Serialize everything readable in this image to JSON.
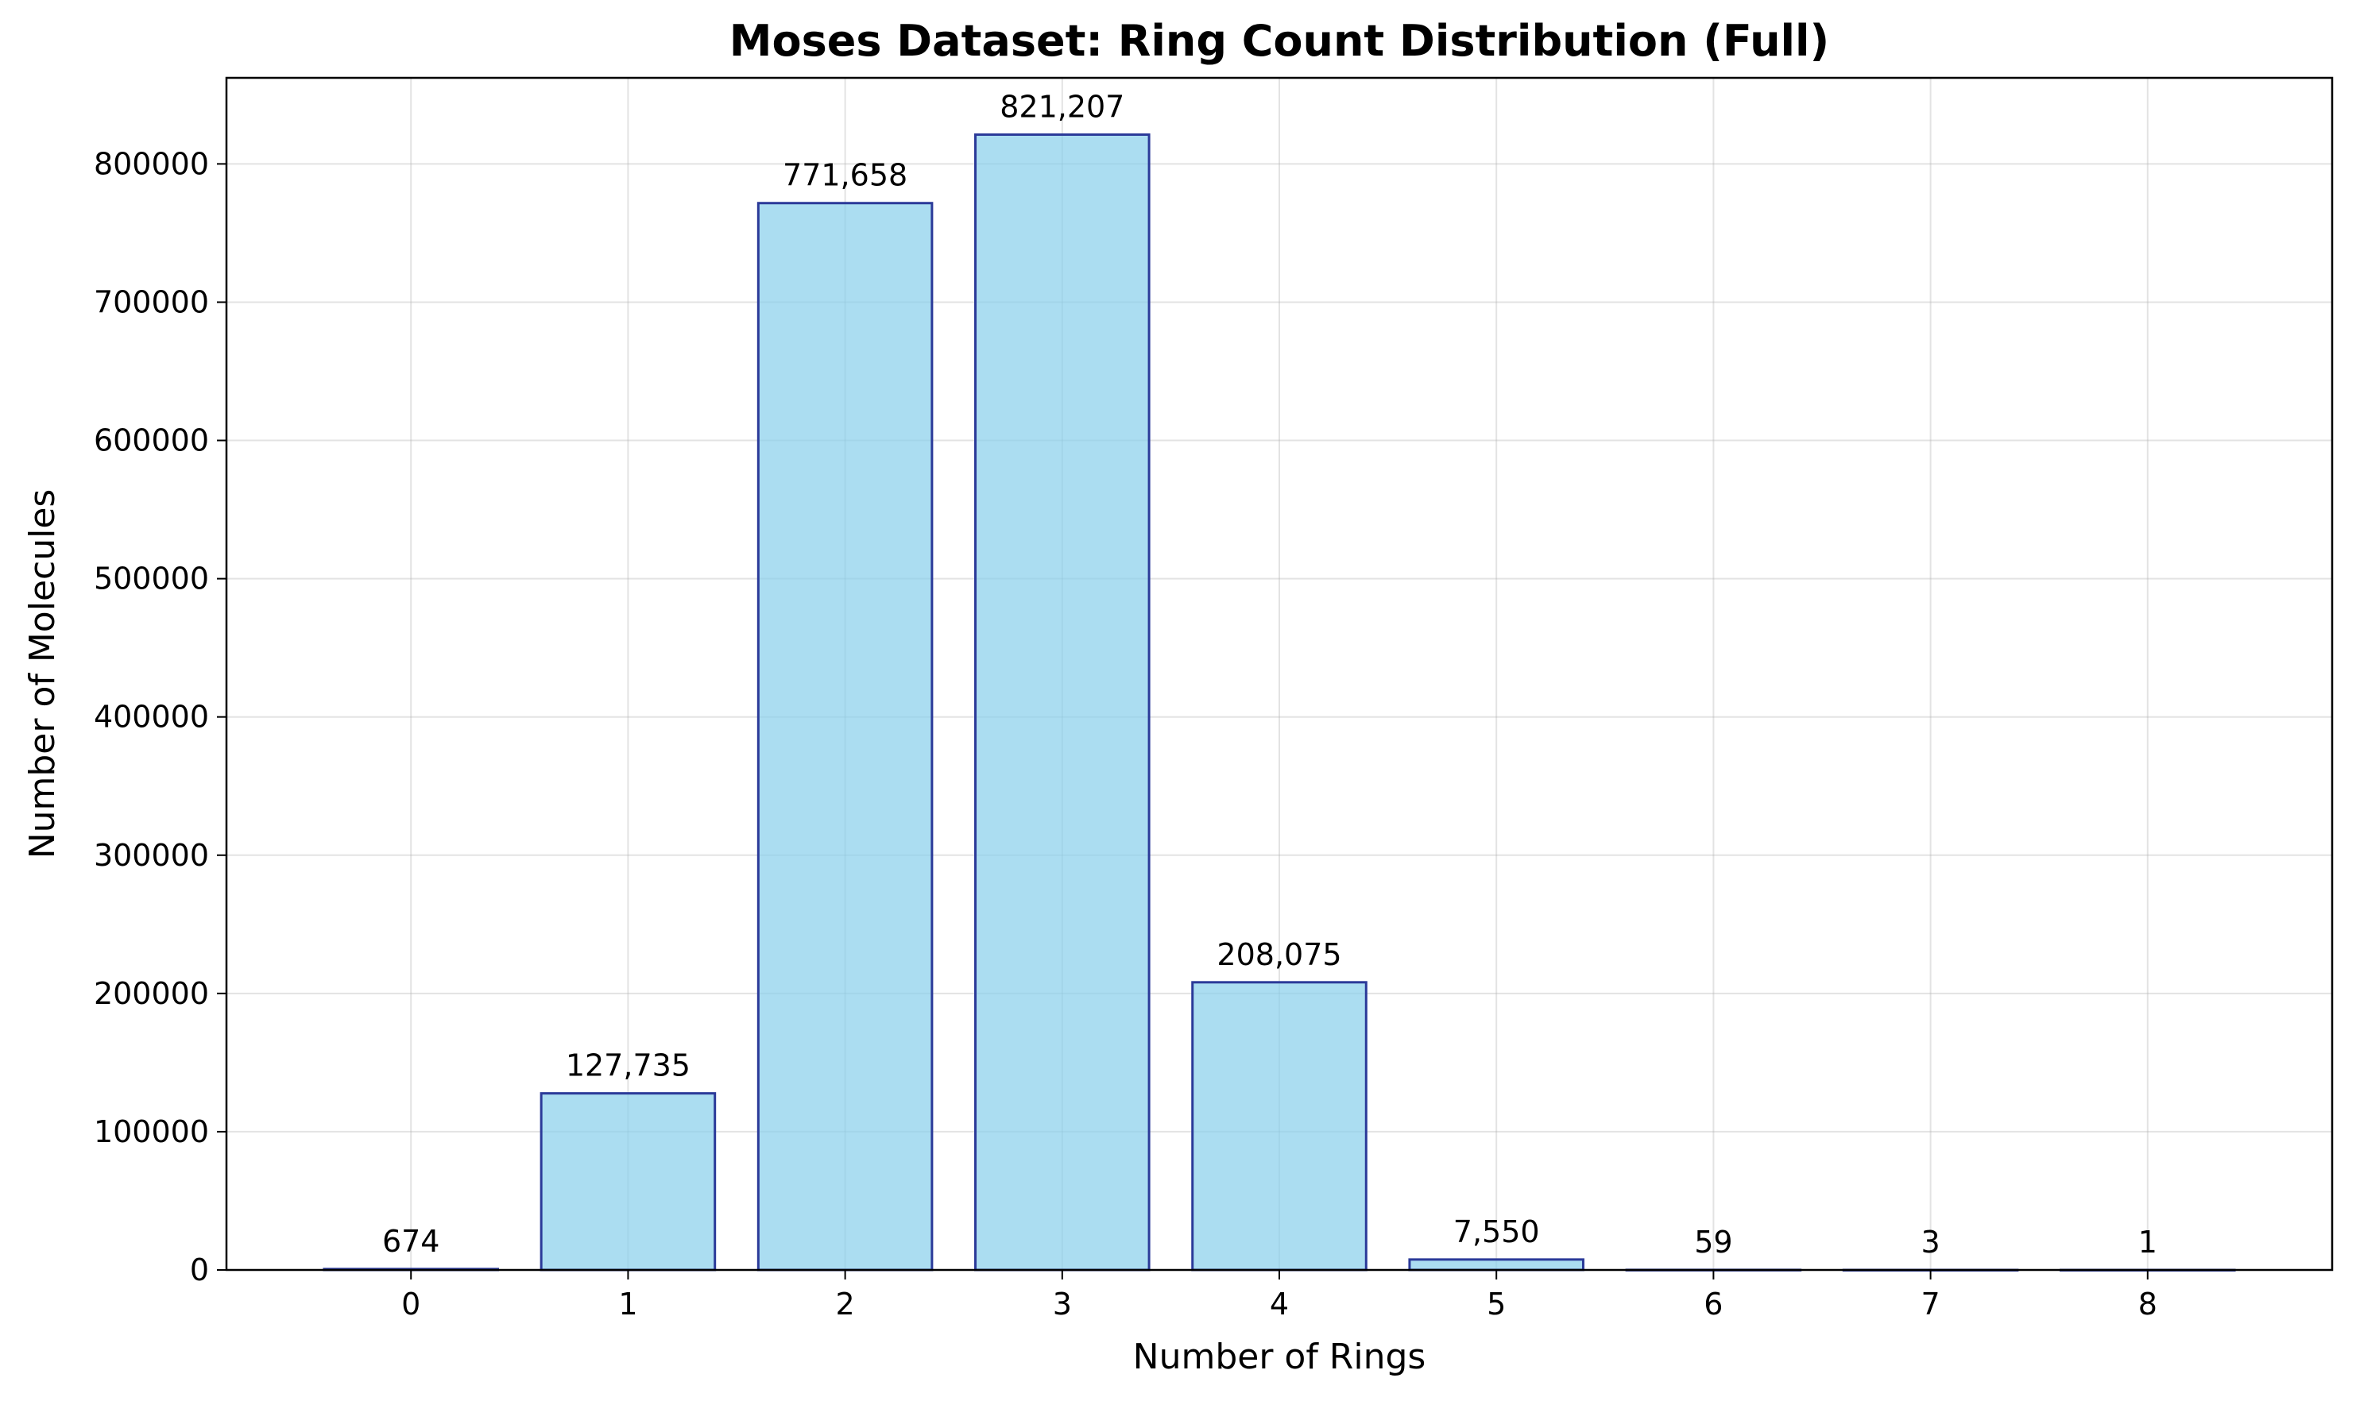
{
  "chart_data": {
    "type": "bar",
    "title": "Moses Dataset: Ring Count Distribution (Full)",
    "xlabel": "Number of Rings",
    "ylabel": "Number of Molecules",
    "categories": [
      "0",
      "1",
      "2",
      "3",
      "4",
      "5",
      "6",
      "7",
      "8"
    ],
    "values": [
      674,
      127735,
      771658,
      821207,
      208075,
      7550,
      59,
      3,
      1
    ],
    "value_labels": [
      "674",
      "127,735",
      "771,658",
      "821,207",
      "208,075",
      "7,550",
      "59",
      "3",
      "1"
    ],
    "yticks": [
      0,
      100000,
      200000,
      300000,
      400000,
      500000,
      600000,
      700000,
      800000
    ],
    "ytick_labels": [
      "0",
      "100000",
      "200000",
      "300000",
      "400000",
      "500000",
      "600000",
      "700000",
      "800000"
    ],
    "ylim": [
      0,
      862267
    ],
    "grid": true,
    "colors": {
      "bar_fill": "#87CEEB",
      "bar_edge": "#2b3a99"
    }
  }
}
